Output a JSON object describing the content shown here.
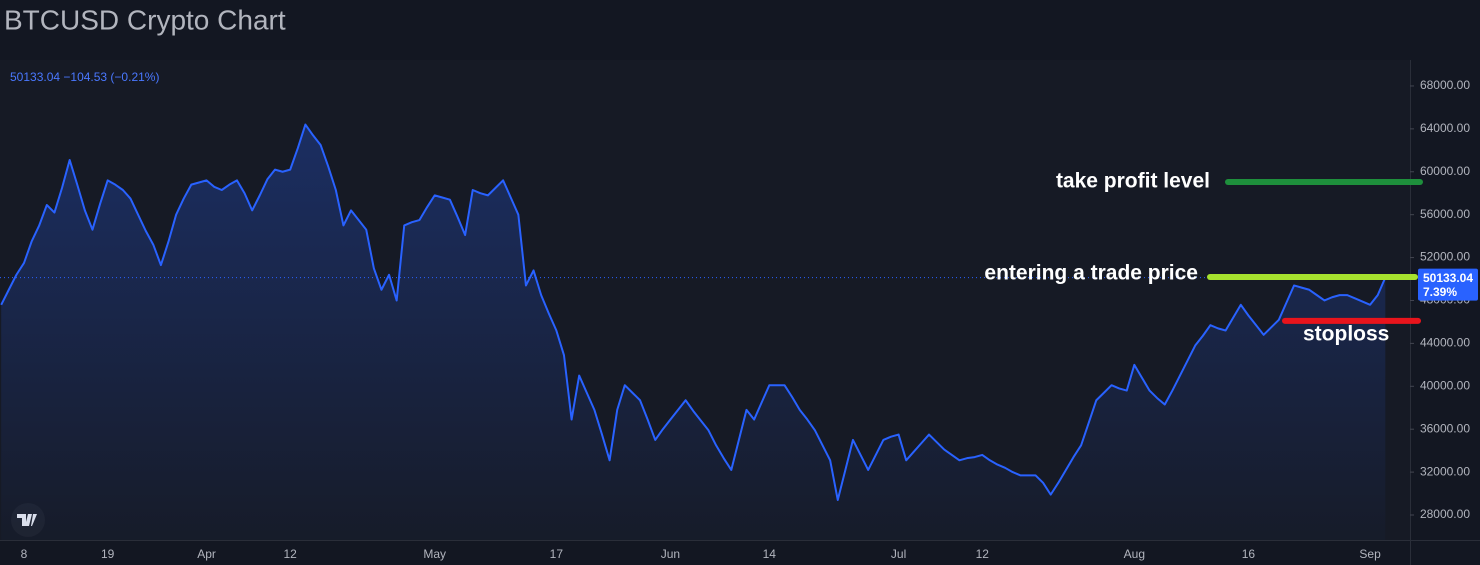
{
  "chart_data": {
    "type": "area",
    "title": "BTCUSD Crypto Chart",
    "legend_text": "50133.04 −104.53 (−0.21%)",
    "last_change_label": "7.39%",
    "color": "#2962ff",
    "categories": [
      null,
      null,
      null,
      "8",
      null,
      null,
      null,
      null,
      null,
      null,
      null,
      null,
      null,
      null,
      "19",
      null,
      null,
      null,
      null,
      null,
      null,
      null,
      null,
      null,
      null,
      null,
      null,
      "Apr",
      null,
      null,
      null,
      null,
      null,
      null,
      null,
      null,
      null,
      null,
      "12",
      null,
      null,
      null,
      null,
      null,
      null,
      null,
      null,
      null,
      null,
      null,
      null,
      null,
      null,
      null,
      null,
      null,
      null,
      "May",
      null,
      null,
      null,
      null,
      null,
      null,
      null,
      null,
      null,
      null,
      null,
      null,
      null,
      null,
      null,
      "17",
      null,
      null,
      null,
      null,
      null,
      null,
      null,
      null,
      null,
      null,
      null,
      null,
      null,
      null,
      "Jun",
      null,
      null,
      null,
      null,
      null,
      null,
      null,
      null,
      null,
      null,
      null,
      null,
      "14",
      null,
      null,
      null,
      null,
      null,
      null,
      null,
      null,
      null,
      null,
      null,
      null,
      null,
      null,
      null,
      null,
      "Jul",
      null,
      null,
      null,
      null,
      null,
      null,
      null,
      null,
      null,
      null,
      "12",
      null,
      null,
      null,
      null,
      null,
      null,
      null,
      null,
      null,
      null,
      null,
      null,
      null,
      null,
      null,
      null,
      null,
      null,
      null,
      "Aug",
      null,
      null,
      null,
      null,
      null,
      null,
      null,
      null,
      null,
      null,
      null,
      null,
      null,
      null,
      "16",
      null,
      null,
      null,
      null,
      null,
      null,
      null,
      null,
      null,
      null,
      null,
      null,
      null,
      null,
      null,
      "Sep",
      null,
      null
    ],
    "values": [
      47600,
      49000,
      50400,
      51500,
      53500,
      55000,
      56900,
      56200,
      58500,
      61100,
      58800,
      56400,
      54600,
      57000,
      59200,
      58800,
      58300,
      57500,
      56000,
      54500,
      53200,
      51300,
      53500,
      56000,
      57500,
      58800,
      59000,
      59200,
      58600,
      58300,
      58800,
      59200,
      58000,
      56400,
      57800,
      59300,
      60200,
      60000,
      60200,
      62200,
      64400,
      63400,
      62500,
      60500,
      58300,
      55000,
      56400,
      55500,
      54600,
      51000,
      49000,
      50400,
      48000,
      55000,
      55300,
      55500,
      56700,
      57800,
      57600,
      57400,
      55800,
      54100,
      58300,
      58000,
      57800,
      58500,
      59200,
      57600,
      56000,
      49400,
      50800,
      48500,
      46800,
      45200,
      42900,
      36900,
      41000,
      39400,
      37800,
      35500,
      33100,
      37800,
      40100,
      39400,
      38700,
      36900,
      35000,
      36000,
      36900,
      37800,
      38700,
      37700,
      36800,
      35900,
      34500,
      33300,
      32200,
      35000,
      37800,
      36900,
      38500,
      40100,
      40100,
      40100,
      39000,
      37800,
      36900,
      35900,
      34500,
      33100,
      29400,
      32200,
      35000,
      33600,
      32200,
      33600,
      35000,
      35300,
      35500,
      33100,
      33900,
      34700,
      35500,
      34800,
      34100,
      33600,
      33100,
      33300,
      33400,
      33600,
      33100,
      32700,
      32400,
      32000,
      31700,
      31700,
      31700,
      31000,
      29900,
      31000,
      32200,
      33400,
      34500,
      36600,
      38700,
      39400,
      40100,
      39800,
      39600,
      42000,
      40800,
      39600,
      38900,
      38300,
      39600,
      41000,
      42400,
      43800,
      44700,
      45700,
      45400,
      45200,
      46400,
      47600,
      46600,
      45700,
      44800,
      45500,
      46200,
      47800,
      49400,
      49200,
      49000,
      48500,
      48000,
      48300,
      48500,
      48500,
      48200,
      47900,
      47600,
      48500,
      50133.04
    ],
    "ylim": [
      25670,
      70420
    ],
    "yticks": [
      {
        "value": 28000,
        "label": "28000.00"
      },
      {
        "value": 32000,
        "label": "32000.00"
      },
      {
        "value": 36000,
        "label": "36000.00"
      },
      {
        "value": 40000,
        "label": "40000.00"
      },
      {
        "value": 44000,
        "label": "44000.00"
      },
      {
        "value": 48000,
        "label": "48000.00"
      },
      {
        "value": 52000,
        "label": "52000.00"
      },
      {
        "value": 56000,
        "label": "56000.00"
      },
      {
        "value": 60000,
        "label": "60000.00"
      },
      {
        "value": 64000,
        "label": "64000.00"
      },
      {
        "value": 68000,
        "label": "68000.00"
      }
    ],
    "grid": false,
    "annotations": [
      {
        "text": "take profit level",
        "value": 59050,
        "color": "#1e8f3c"
      },
      {
        "text": "entering a trade price",
        "value": 50190,
        "color": "#a6e22e"
      },
      {
        "text": "stoploss",
        "value": 46100,
        "color": "#e8141c"
      }
    ]
  }
}
